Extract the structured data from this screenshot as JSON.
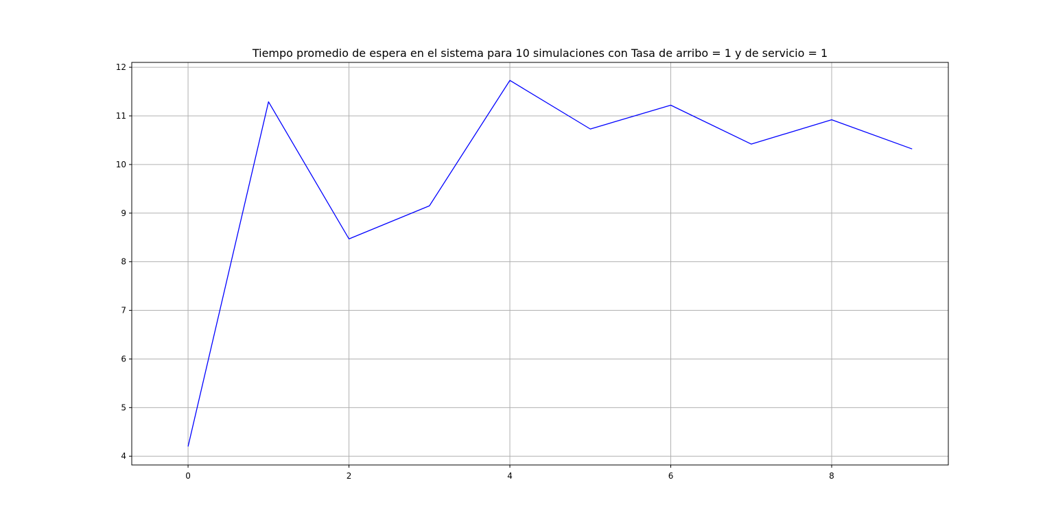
{
  "chart_data": {
    "type": "line",
    "title": "Tiempo promedio de espera en el sistema para 10 simulaciones con Tasa de arribo = 1 y de servicio = 1",
    "xlabel": "",
    "ylabel": "",
    "x": [
      0,
      1,
      2,
      3,
      4,
      5,
      6,
      7,
      8,
      9
    ],
    "series": [
      {
        "values": [
          4.2,
          11.29,
          8.47,
          9.15,
          11.73,
          10.73,
          11.22,
          10.42,
          10.92,
          10.32
        ],
        "color": "#0000ff"
      }
    ],
    "xlim": [
      -0.7,
      9.45
    ],
    "ylim": [
      3.82,
      12.1
    ],
    "xticks": [
      0,
      2,
      4,
      6,
      8
    ],
    "yticks": [
      4,
      5,
      6,
      7,
      8,
      9,
      10,
      11,
      12
    ],
    "grid": true,
    "grid_color": "#b0b0b0",
    "legend": false
  }
}
